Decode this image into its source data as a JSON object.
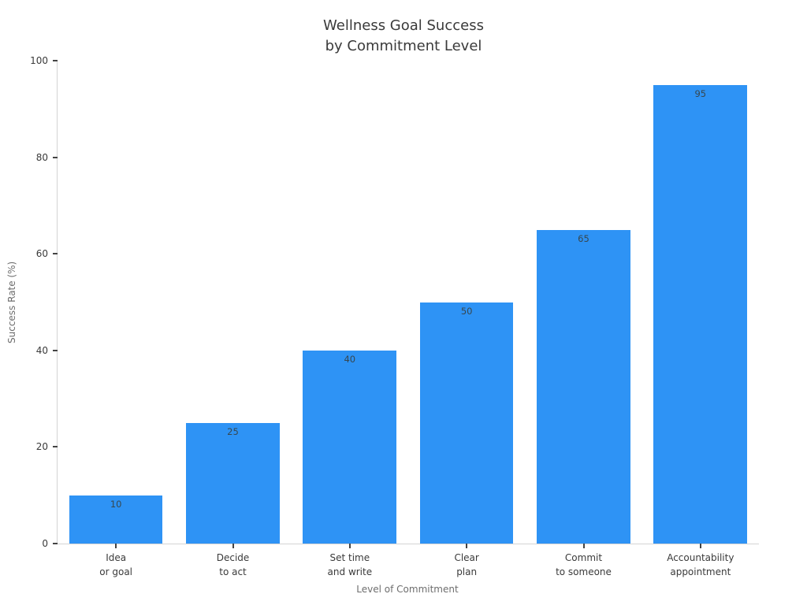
{
  "chart_data": {
    "type": "bar",
    "title_lines": [
      "Wellness Goal Success",
      "by Commitment Level"
    ],
    "categories": [
      [
        "Idea",
        "or goal"
      ],
      [
        "Decide",
        "to act"
      ],
      [
        "Set time",
        "and write"
      ],
      [
        "Clear",
        "plan"
      ],
      [
        "Commit",
        "to someone"
      ],
      [
        "Accountability",
        "appointment"
      ]
    ],
    "values": [
      10,
      25,
      40,
      50,
      65,
      95
    ],
    "value_labels": [
      "10",
      "25",
      "40",
      "50",
      "65",
      "95"
    ],
    "xlabel": "Level of Commitment",
    "ylabel": "Success Rate (%)",
    "ylim": [
      0,
      100
    ],
    "yticks": [
      0,
      20,
      40,
      60,
      80,
      100
    ],
    "grid": false,
    "legend": null,
    "colors": {
      "bar": "#2e93f5",
      "value_label": "#37474f",
      "spine": "#d4d4d4",
      "tick": "#444444",
      "text": "#3a3a3a",
      "muted": "#6e6e6e"
    }
  }
}
